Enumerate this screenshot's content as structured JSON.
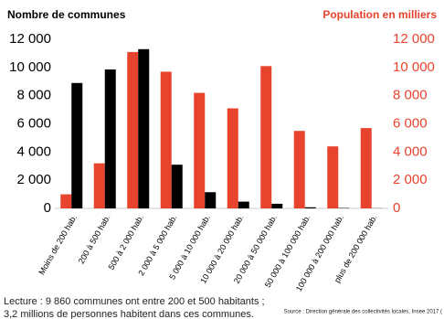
{
  "chart_data": {
    "type": "bar",
    "categories": [
      "Moins de 200 hab.",
      "200 à 500 hab.",
      "500 à 2 000 hab.",
      "2 000 à 5 000 hab.",
      "5 000 à 10 000 hab.",
      "10 000 à 20 000 hab.",
      "20 000 à 50 000 hab.",
      "50 000 à 100 000 hab.",
      "100 000 à 200 000 hab.",
      "plus de 200 000 hab."
    ],
    "series": [
      {
        "name": "Population en milliers",
        "color": "#e8432d",
        "axis": "y2",
        "values": [
          1000,
          3200,
          11100,
          9700,
          8200,
          7100,
          10100,
          5500,
          4400,
          5700
        ]
      },
      {
        "name": "Nombre de communes",
        "color": "#000000",
        "values": [
          8900,
          9860,
          11300,
          3100,
          1150,
          480,
          330,
          80,
          30,
          10
        ]
      }
    ],
    "ylim": [
      0,
      12000
    ],
    "yticks": [
      0,
      {
        "value": 2000,
        "label": "2 000"
      },
      {
        "value": 4000,
        "label": "4 000"
      },
      {
        "value": 6000,
        "label": "6 000"
      },
      {
        "value": 8000,
        "label": "8 000"
      },
      {
        "value": 10000,
        "label": "10 000"
      },
      {
        "value": 12000,
        "label": "12 000"
      }
    ],
    "y2lim": [
      0,
      12000
    ],
    "y2ticks": [
      0,
      {
        "value": 2000,
        "label": "2 000"
      },
      {
        "value": 4000,
        "label": "4 000"
      },
      {
        "value": 6000,
        "label": "6 000"
      },
      {
        "value": 8000,
        "label": "8 000"
      },
      {
        "value": 10000,
        "label": "10 000"
      },
      {
        "value": 12000,
        "label": "12 000"
      }
    ],
    "notes": [
      "Lecture : 9 860 communes ont entre 200 et 500 habitants ;",
      "3,2 millions de personnes habitent dans ces communes."
    ],
    "source": "Source : Direction générale des collectivités locales, Insee 2017 ("
  }
}
